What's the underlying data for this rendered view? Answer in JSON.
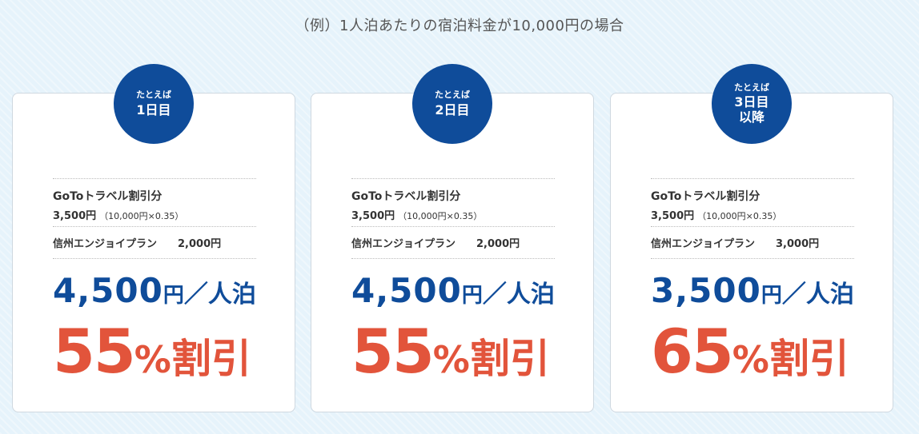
{
  "caption": "（例）1人泊あたりの宿泊料金が10,000円の場合",
  "cards": [
    {
      "badge_small": "たとえば",
      "badge_line1": "1日目",
      "badge_line2": "",
      "goto_label": "GoToトラベル割引分",
      "goto_amount": "3,500円",
      "goto_calc": "（10,000円×0.35）",
      "shinshu_label": "信州エンジョイプラン",
      "shinshu_amount": "2,000円",
      "price_num": "4,500",
      "price_unit": "円",
      "price_per": "／人泊",
      "discount_num": "55",
      "discount_pct": "%",
      "discount_word": "割引"
    },
    {
      "badge_small": "たとえば",
      "badge_line1": "2日目",
      "badge_line2": "",
      "goto_label": "GoToトラベル割引分",
      "goto_amount": "3,500円",
      "goto_calc": "（10,000円×0.35）",
      "shinshu_label": "信州エンジョイプラン",
      "shinshu_amount": "2,000円",
      "price_num": "4,500",
      "price_unit": "円",
      "price_per": "／人泊",
      "discount_num": "55",
      "discount_pct": "%",
      "discount_word": "割引"
    },
    {
      "badge_small": "たとえば",
      "badge_line1": "3日目",
      "badge_line2": "以降",
      "goto_label": "GoToトラベル割引分",
      "goto_amount": "3,500円",
      "goto_calc": "（10,000円×0.35）",
      "shinshu_label": "信州エンジョイプラン",
      "shinshu_amount": "3,000円",
      "price_num": "3,500",
      "price_unit": "円",
      "price_per": "／人泊",
      "discount_num": "65",
      "discount_pct": "%",
      "discount_word": "割引"
    }
  ],
  "colors": {
    "badge": "#0f4c9a",
    "price": "#0f4c9a",
    "discount": "#e2543b",
    "background": "#e6f3fb"
  }
}
